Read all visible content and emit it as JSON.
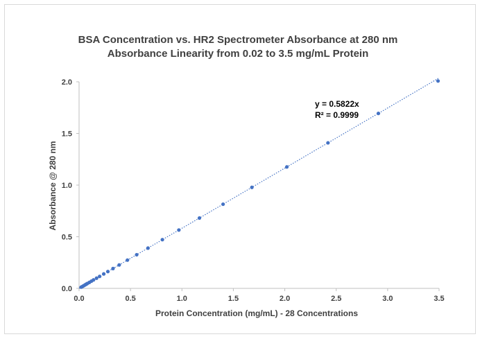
{
  "chart_data": {
    "type": "scatter",
    "title_lines": [
      "BSA Concentration vs. HR2 Spectrometer Absorbance at 280 nm",
      "Absorbance Linearity from 0.02 to 3.5 mg/mL Protein"
    ],
    "xlabel": "Protein Concentration (mg/mL) - 28 Concentrations",
    "ylabel": "Absorbance @ 280 nm",
    "xlim": [
      0,
      3.5
    ],
    "ylim": [
      0,
      2.0
    ],
    "x_ticks": [
      "0.0",
      "0.5",
      "1.0",
      "1.5",
      "2.0",
      "2.5",
      "3.0",
      "3.5"
    ],
    "y_ticks": [
      "0.0",
      "0.5",
      "1.0",
      "1.5",
      "2.0"
    ],
    "grid": false,
    "colors": {
      "points": "#4472c4",
      "trendline": "#4472c4"
    },
    "trendline": {
      "slope": 0.5822,
      "intercept": 0,
      "style": "dotted"
    },
    "equation_label": "y = 0.5822x",
    "r2_label": "R² = 0.9999",
    "points": [
      [
        0.02,
        0.012
      ],
      [
        0.03,
        0.017
      ],
      [
        0.04,
        0.023
      ],
      [
        0.05,
        0.029
      ],
      [
        0.06,
        0.035
      ],
      [
        0.07,
        0.041
      ],
      [
        0.08,
        0.047
      ],
      [
        0.1,
        0.058
      ],
      [
        0.12,
        0.07
      ],
      [
        0.14,
        0.082
      ],
      [
        0.17,
        0.099
      ],
      [
        0.2,
        0.116
      ],
      [
        0.24,
        0.14
      ],
      [
        0.28,
        0.163
      ],
      [
        0.33,
        0.192
      ],
      [
        0.39,
        0.227
      ],
      [
        0.47,
        0.274
      ],
      [
        0.56,
        0.326
      ],
      [
        0.67,
        0.39
      ],
      [
        0.81,
        0.472
      ],
      [
        0.97,
        0.565
      ],
      [
        1.17,
        0.681
      ],
      [
        1.4,
        0.815
      ],
      [
        1.68,
        0.978
      ],
      [
        2.02,
        1.176
      ],
      [
        2.42,
        1.409
      ],
      [
        2.91,
        1.694
      ],
      [
        3.49,
        2.008
      ]
    ]
  }
}
